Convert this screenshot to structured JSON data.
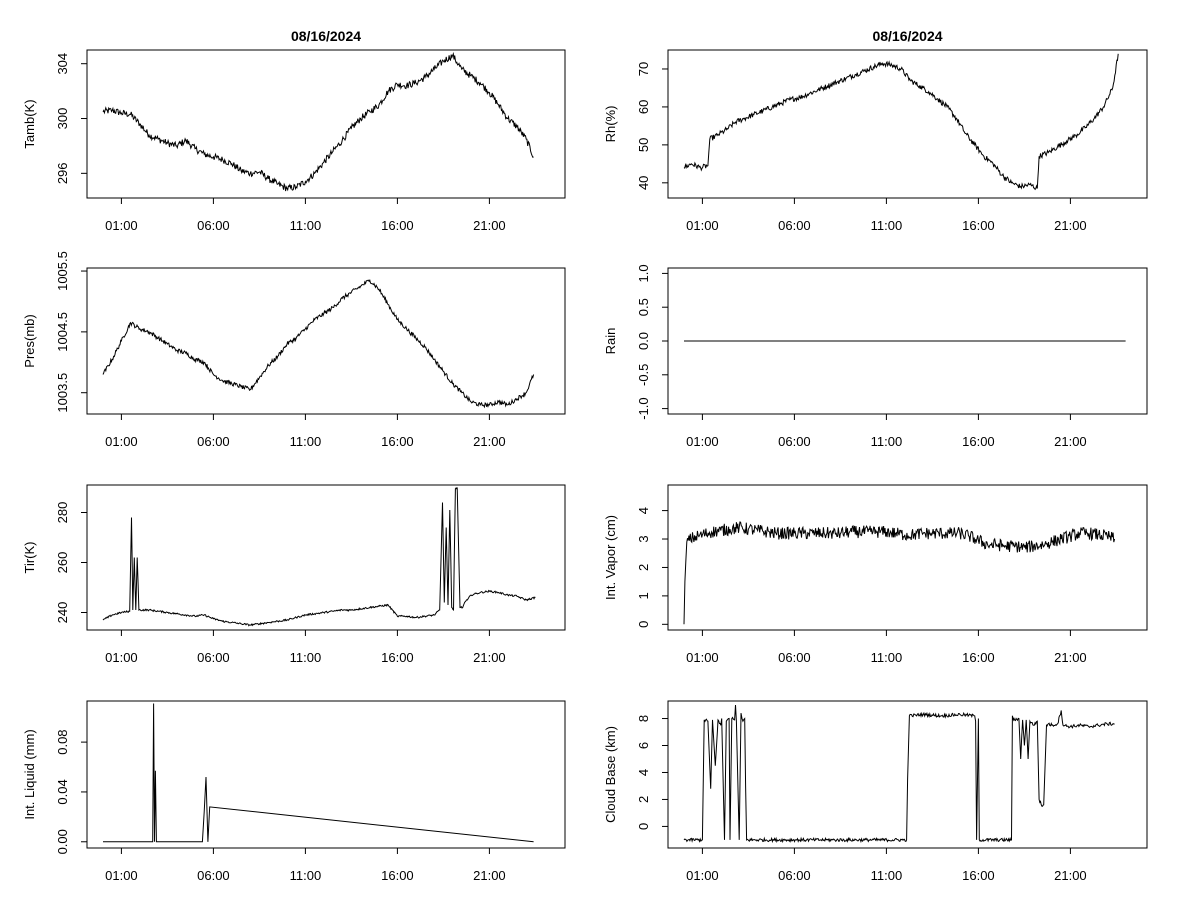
{
  "chart_data": [
    {
      "type": "line",
      "title": "08/16/2024",
      "ylabel": "Tamb(K)",
      "xlabel": "",
      "x_ticks": [
        "01:00",
        "06:00",
        "11:00",
        "16:00",
        "21:00"
      ],
      "y_ticks": [
        "296",
        "300",
        "304"
      ],
      "ylim": [
        294.2,
        305.0
      ],
      "series": [
        {
          "x": [
            0.0,
            0.5,
            1.0,
            1.5,
            2.0,
            2.5,
            3.0,
            3.5,
            4.0,
            4.5,
            5.0,
            5.5,
            6.0,
            6.5,
            7.0,
            7.5,
            8.0,
            8.5,
            9.0,
            9.5,
            10.0,
            10.5,
            11.0,
            11.5,
            12.0,
            12.5,
            13.0,
            13.5,
            14.0,
            14.5,
            15.0,
            15.5,
            16.0,
            16.5,
            17.0,
            17.5,
            18.0,
            18.5,
            19.0,
            19.5,
            20.0,
            20.5,
            21.0,
            21.5,
            22.0,
            22.5,
            23.0,
            23.4
          ],
          "y": [
            300.5,
            300.6,
            300.4,
            300.3,
            299.6,
            298.8,
            298.5,
            298.2,
            298.0,
            298.4,
            297.8,
            297.4,
            297.2,
            297.0,
            296.7,
            296.2,
            296.0,
            296.1,
            295.6,
            295.2,
            294.9,
            295.0,
            295.4,
            296.0,
            296.8,
            297.6,
            298.4,
            299.3,
            300.0,
            300.5,
            301.0,
            302.0,
            302.5,
            302.4,
            302.6,
            303.0,
            303.6,
            304.2,
            304.6,
            303.6,
            303.1,
            302.6,
            301.9,
            301.0,
            300.0,
            299.4,
            298.5,
            297.2
          ],
          "noise": 0.25
        }
      ]
    },
    {
      "type": "line",
      "title": "08/16/2024",
      "ylabel": "Rh(%)",
      "xlabel": "",
      "x_ticks": [
        "01:00",
        "06:00",
        "11:00",
        "16:00",
        "21:00"
      ],
      "y_ticks": [
        "40",
        "50",
        "60",
        "70"
      ],
      "ylim": [
        36,
        75
      ],
      "series": [
        {
          "x": [
            0.0,
            0.4,
            0.9,
            1.3,
            1.4,
            1.8,
            2.3,
            2.8,
            3.3,
            3.8,
            4.3,
            4.8,
            5.3,
            5.8,
            6.3,
            6.8,
            7.3,
            7.8,
            8.3,
            8.8,
            9.3,
            9.8,
            10.3,
            10.8,
            11.3,
            11.8,
            12.3,
            12.8,
            13.3,
            13.8,
            14.3,
            14.8,
            15.3,
            15.8,
            16.3,
            16.8,
            17.3,
            17.8,
            18.3,
            18.8,
            19.2,
            19.3,
            19.8,
            20.3,
            20.8,
            21.3,
            21.8,
            22.3,
            22.8,
            23.3,
            23.6
          ],
          "y": [
            44.0,
            45.0,
            44.0,
            44.5,
            51.5,
            52.5,
            54.0,
            56.0,
            57.0,
            58.0,
            59.0,
            60.0,
            61.0,
            62.0,
            62.5,
            63.5,
            64.5,
            65.5,
            66.5,
            67.5,
            68.5,
            69.5,
            70.5,
            71.5,
            71.0,
            70.0,
            67.0,
            65.5,
            64.0,
            62.0,
            60.0,
            57.0,
            53.0,
            50.0,
            47.0,
            45.0,
            42.0,
            40.0,
            39.0,
            39.5,
            38.5,
            47.0,
            48.0,
            49.5,
            51.0,
            52.5,
            54.5,
            57.0,
            60.0,
            65.0,
            74.0
          ],
          "noise": 0.7
        }
      ]
    },
    {
      "type": "line",
      "title": "",
      "ylabel": "Pres(mb)",
      "xlabel": "",
      "x_ticks": [
        "01:00",
        "06:00",
        "11:00",
        "16:00",
        "21:00"
      ],
      "y_ticks": [
        "1003.5",
        "1004.5",
        "1005.5"
      ],
      "ylim": [
        1003.15,
        1005.55
      ],
      "series": [
        {
          "x": [
            0.0,
            0.5,
            1.0,
            1.5,
            2.0,
            2.5,
            3.0,
            3.5,
            4.0,
            4.5,
            5.0,
            5.5,
            6.0,
            6.5,
            7.0,
            7.5,
            8.0,
            8.5,
            9.0,
            9.5,
            10.0,
            10.5,
            11.0,
            11.5,
            12.0,
            12.5,
            13.0,
            13.5,
            14.0,
            14.5,
            15.0,
            15.5,
            16.0,
            16.5,
            17.0,
            17.5,
            18.0,
            18.5,
            19.0,
            19.5,
            20.0,
            20.5,
            21.0,
            21.5,
            22.0,
            22.5,
            23.0,
            23.4
          ],
          "y": [
            1003.8,
            1004.05,
            1004.35,
            1004.65,
            1004.55,
            1004.5,
            1004.4,
            1004.3,
            1004.2,
            1004.15,
            1004.05,
            1004.0,
            1003.8,
            1003.7,
            1003.65,
            1003.6,
            1003.55,
            1003.75,
            1003.95,
            1004.1,
            1004.3,
            1004.4,
            1004.55,
            1004.7,
            1004.8,
            1004.9,
            1005.05,
            1005.15,
            1005.25,
            1005.35,
            1005.2,
            1004.95,
            1004.7,
            1004.55,
            1004.4,
            1004.25,
            1004.05,
            1003.85,
            1003.65,
            1003.5,
            1003.35,
            1003.3,
            1003.3,
            1003.35,
            1003.3,
            1003.4,
            1003.5,
            1003.8
          ],
          "noise": 0.035
        }
      ]
    },
    {
      "type": "line",
      "title": "",
      "ylabel": "Rain",
      "xlabel": "",
      "x_ticks": [
        "01:00",
        "06:00",
        "11:00",
        "16:00",
        "21:00"
      ],
      "y_ticks": [
        "-1.0",
        "-0.5",
        "0.0",
        "0.5",
        "1.0"
      ],
      "ylim": [
        -1.08,
        1.08
      ],
      "series": [
        {
          "x": [
            0.0,
            24.0
          ],
          "y": [
            0.0,
            0.0
          ],
          "noise": 0
        }
      ]
    },
    {
      "type": "line",
      "title": "",
      "ylabel": "Tir(K)",
      "xlabel": "",
      "x_ticks": [
        "01:00",
        "06:00",
        "11:00",
        "16:00",
        "21:00"
      ],
      "y_ticks": [
        "240",
        "260",
        "280"
      ],
      "ylim": [
        233,
        291
      ],
      "series": [
        {
          "x": [
            0.0,
            0.5,
            1.0,
            1.45,
            1.55,
            1.62,
            1.7,
            1.78,
            1.86,
            1.95,
            2.5,
            3.0,
            3.5,
            4.0,
            4.5,
            5.0,
            5.5,
            6.0,
            6.5,
            7.0,
            7.5,
            8.0,
            8.5,
            9.0,
            9.5,
            10.0,
            10.5,
            11.0,
            11.5,
            12.0,
            12.5,
            13.0,
            13.5,
            14.0,
            14.5,
            15.0,
            15.5,
            16.0,
            16.5,
            17.0,
            17.5,
            18.0,
            18.3,
            18.45,
            18.55,
            18.65,
            18.75,
            18.85,
            18.95,
            19.05,
            19.15,
            19.25,
            19.4,
            19.55,
            19.65,
            19.8,
            20.0,
            20.5,
            21.0,
            21.5,
            22.0,
            22.5,
            23.0,
            23.5
          ],
          "y": [
            237.0,
            239.0,
            240.0,
            240.5,
            278.0,
            241.0,
            262.0,
            241.0,
            262.0,
            241.0,
            241.0,
            240.5,
            240.0,
            239.5,
            239.0,
            238.5,
            239.0,
            237.5,
            236.5,
            236.0,
            235.5,
            235.0,
            235.5,
            236.0,
            236.5,
            237.0,
            238.0,
            239.0,
            239.5,
            240.0,
            240.5,
            241.0,
            241.0,
            241.5,
            242.0,
            242.5,
            243.0,
            238.5,
            238.5,
            238.0,
            238.5,
            239.0,
            241.0,
            284.0,
            244.0,
            274.0,
            243.0,
            281.0,
            242.0,
            241.0,
            289.5,
            290.0,
            242.0,
            242.0,
            244.0,
            245.0,
            247.0,
            248.0,
            248.5,
            248.0,
            247.0,
            246.5,
            245.0,
            246.0
          ],
          "noise": 0.35
        }
      ]
    },
    {
      "type": "line",
      "title": "",
      "ylabel": "Int. Vapor (cm)",
      "xlabel": "",
      "x_ticks": [
        "01:00",
        "06:00",
        "11:00",
        "16:00",
        "21:00"
      ],
      "y_ticks": [
        "0",
        "1",
        "2",
        "3",
        "4"
      ],
      "ylim": [
        -0.2,
        4.9
      ],
      "series": [
        {
          "x": [
            0.0,
            0.05,
            0.15,
            0.5,
            1.0,
            1.5,
            2.0,
            2.5,
            3.0,
            3.5,
            4.0,
            4.5,
            5.0,
            5.5,
            6.0,
            6.5,
            7.0,
            7.5,
            8.0,
            8.5,
            9.0,
            9.5,
            10.0,
            10.5,
            11.0,
            11.5,
            12.0,
            12.5,
            13.0,
            13.5,
            14.0,
            14.5,
            15.0,
            15.5,
            16.0,
            16.5,
            17.0,
            17.5,
            18.0,
            18.5,
            19.0,
            19.5,
            20.0,
            20.5,
            21.0,
            21.5,
            22.0,
            22.5,
            23.0,
            23.4
          ],
          "y": [
            0.0,
            1.5,
            2.9,
            3.05,
            3.15,
            3.25,
            3.3,
            3.35,
            3.4,
            3.35,
            3.3,
            3.25,
            3.2,
            3.2,
            3.2,
            3.2,
            3.2,
            3.2,
            3.2,
            3.2,
            3.25,
            3.25,
            3.25,
            3.25,
            3.25,
            3.2,
            3.15,
            3.15,
            3.2,
            3.2,
            3.2,
            3.2,
            3.2,
            3.1,
            2.95,
            2.8,
            2.8,
            2.75,
            2.75,
            2.7,
            2.75,
            2.8,
            2.9,
            3.0,
            3.1,
            3.2,
            3.2,
            3.15,
            3.1,
            3.0
          ],
          "noise": 0.22
        }
      ]
    },
    {
      "type": "line",
      "title": "",
      "ylabel": "Int. Liquid (mm)",
      "xlabel": "",
      "x_ticks": [
        "01:00",
        "06:00",
        "11:00",
        "16:00",
        "21:00"
      ],
      "y_ticks": [
        "0.00",
        "0.04",
        "0.08"
      ],
      "ylim": [
        -0.005,
        0.113
      ],
      "series": [
        {
          "x": [
            0.0,
            2.7,
            2.75,
            2.8,
            2.85,
            2.9,
            5.4,
            5.5,
            5.6,
            5.7,
            5.8,
            23.4
          ],
          "y": [
            0.0,
            0.0,
            0.111,
            0.0,
            0.057,
            0.0,
            0.0,
            0.024,
            0.052,
            0.0,
            0.028,
            0.0
          ],
          "noise": 0
        }
      ]
    },
    {
      "type": "line",
      "title": "",
      "ylabel": "Cloud Base (km)",
      "xlabel": "",
      "x_ticks": [
        "01:00",
        "06:00",
        "11:00",
        "16:00",
        "21:00"
      ],
      "y_ticks": [
        "0",
        "2",
        "4",
        "6",
        "8"
      ],
      "ylim": [
        -1.6,
        9.3
      ],
      "series": [
        {
          "x": [
            0.0,
            1.0,
            1.05,
            1.1,
            1.3,
            1.45,
            1.55,
            1.7,
            1.85,
            2.0,
            2.05,
            2.2,
            2.3,
            2.45,
            2.5,
            2.6,
            2.75,
            2.8,
            2.85,
            3.0,
            3.1,
            3.15,
            3.2,
            3.3,
            3.35,
            3.4,
            12.1,
            12.15,
            12.25,
            13.0,
            14.0,
            15.0,
            15.8,
            15.85,
            15.9,
            15.95,
            16.0,
            16.05,
            17.8,
            17.85,
            17.9,
            18.2,
            18.3,
            18.4,
            18.5,
            18.6,
            18.7,
            18.8,
            19.0,
            19.2,
            19.3,
            19.45,
            19.55,
            19.7,
            19.8,
            20.0,
            20.3,
            20.5,
            20.6,
            21.0,
            21.5,
            22.0,
            22.5,
            23.0,
            23.4
          ],
          "y": [
            -1.0,
            -1.0,
            3.5,
            7.9,
            7.8,
            2.8,
            7.9,
            4.5,
            7.9,
            7.5,
            8.0,
            -1.0,
            7.8,
            8.0,
            -1.0,
            8.0,
            7.9,
            9.0,
            7.8,
            -1.0,
            8.4,
            8.0,
            7.8,
            8.0,
            3.0,
            -1.0,
            -1.0,
            3.5,
            8.2,
            8.3,
            8.2,
            8.3,
            8.2,
            7.8,
            -1.0,
            3.5,
            8.0,
            -1.0,
            -1.0,
            8.2,
            7.9,
            8.0,
            5.0,
            7.9,
            6.0,
            7.9,
            5.0,
            7.8,
            7.5,
            7.8,
            2.0,
            1.5,
            1.6,
            7.5,
            7.6,
            7.5,
            7.6,
            8.6,
            7.5,
            7.4,
            7.5,
            7.4,
            7.5,
            7.6,
            7.6
          ],
          "noise": 0.12
        }
      ]
    }
  ]
}
